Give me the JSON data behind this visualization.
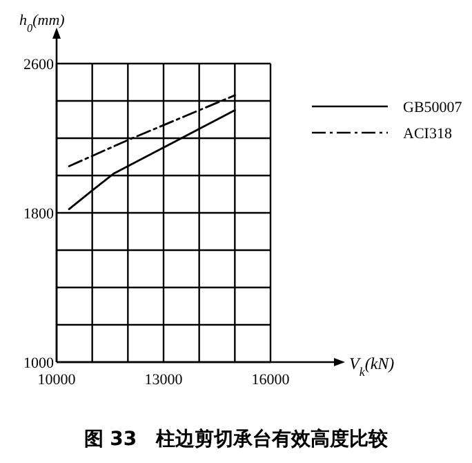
{
  "chart_data": {
    "type": "line",
    "title": "图 33　柱边剪切承台有效高度比较",
    "xlabel": "V$_{k}$(kN)",
    "ylabel": "h$_{0}$(mm)",
    "xlim": [
      10000,
      16000
    ],
    "xticks": [
      10000,
      {
        "value": 11000,
        "label": null
      },
      {
        "value": 12000,
        "label": null
      },
      13000,
      {
        "value": 14000,
        "label": null
      },
      {
        "value": 15000,
        "label": null
      },
      16000
    ],
    "ylim": [
      1000,
      2600
    ],
    "yticks": [
      1000,
      {
        "value": 1200,
        "label": null
      },
      {
        "value": 1400,
        "label": null
      },
      {
        "value": 1600,
        "label": null
      },
      1800,
      {
        "value": 2000,
        "label": null
      },
      {
        "value": 2200,
        "label": null
      },
      {
        "value": 2400,
        "label": null
      },
      2600
    ],
    "grid": true,
    "legend": "right",
    "series": [
      {
        "name": "GB50007",
        "color": "#000000",
        "line_style": "solid",
        "x": [
          10350,
          11000,
          11600,
          13000,
          15000
        ],
        "values": [
          1820,
          1920,
          2010,
          2150,
          2350
        ]
      },
      {
        "name": "ACI318",
        "color": "#000000",
        "line_style": "dashed",
        "x": [
          10350,
          12000,
          15000
        ],
        "values": [
          2050,
          2190,
          2430
        ]
      }
    ]
  }
}
